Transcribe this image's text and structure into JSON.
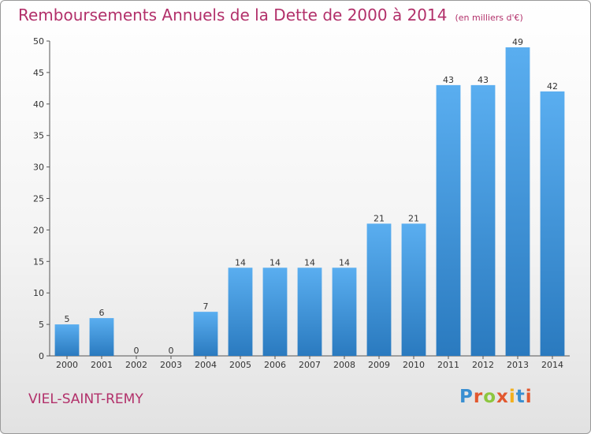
{
  "title": "Remboursements Annuels de la Dette de 2000 à 2014",
  "unit": "(en milliers d'€)",
  "commune": "VIEL-SAINT-REMY",
  "logo": {
    "text": "Proxiti",
    "letter_colors": [
      "#3a8fd1",
      "#e2582f",
      "#8dc63f",
      "#e2582f",
      "#f2b01e",
      "#3a8fd1",
      "#e2582f"
    ]
  },
  "colors": {
    "title": "#b2306a",
    "bar_top": "#5aaef0",
    "bar_bottom": "#2a7abf"
  },
  "chart_data": {
    "type": "bar",
    "title": "Remboursements Annuels de la Dette de 2000 à 2014",
    "xlabel": "",
    "ylabel": "",
    "categories": [
      "2000",
      "2001",
      "2002",
      "2003",
      "2004",
      "2005",
      "2006",
      "2007",
      "2008",
      "2009",
      "2010",
      "2011",
      "2012",
      "2013",
      "2014"
    ],
    "values": [
      5,
      6,
      0,
      0,
      7,
      14,
      14,
      14,
      14,
      21,
      21,
      43,
      43,
      49,
      42
    ],
    "ylim": [
      0,
      50
    ],
    "yticks": [
      0,
      5,
      10,
      15,
      20,
      25,
      30,
      35,
      40,
      45,
      50
    ],
    "grid": false,
    "data_labels": true
  }
}
